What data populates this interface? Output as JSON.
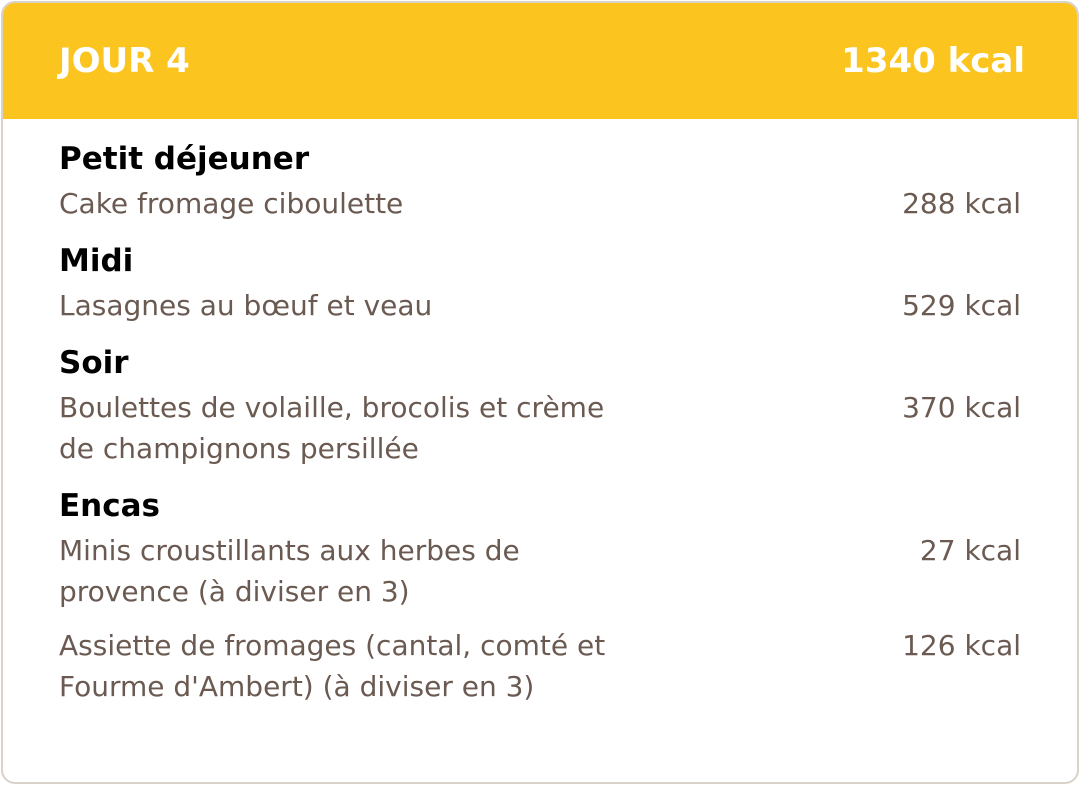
{
  "header": {
    "title": "JOUR 4",
    "total": "1340 kcal"
  },
  "sections": [
    {
      "name": "Petit déjeuner",
      "items": [
        {
          "lines": [
            "Cake fromage ciboulette"
          ],
          "kcal": "288 kcal"
        }
      ]
    },
    {
      "name": "Midi",
      "items": [
        {
          "lines": [
            "Lasagnes au bœuf et veau"
          ],
          "kcal": "529 kcal"
        }
      ]
    },
    {
      "name": "Soir",
      "items": [
        {
          "lines": [
            "Boulettes de volaille, brocolis et crème",
            "de champignons persillée"
          ],
          "kcal": "370 kcal"
        }
      ]
    },
    {
      "name": "Encas",
      "items": [
        {
          "lines": [
            "Minis croustillants aux herbes de",
            "provence (à diviser en 3)"
          ],
          "kcal": "27 kcal"
        },
        {
          "lines": [
            "Assiette de fromages (cantal, comté et",
            "Fourme d'Ambert) (à diviser en 3)"
          ],
          "kcal": "126 kcal"
        }
      ]
    }
  ]
}
